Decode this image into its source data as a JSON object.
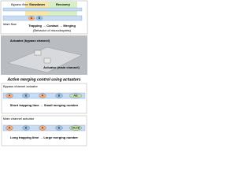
{
  "top": {
    "bypass_flow": "Bypass flow",
    "slowdown": "Slowdown",
    "recovery": "Recovery",
    "droplet_a": "A",
    "droplet_b": "B",
    "main_flow": "Main flow",
    "process": "Trapping → Contact → Merging",
    "behavior": "(Behavior of microdroplets)"
  },
  "photo": {
    "actuator_bypass": "Actuator (bypass channel)",
    "actuator_main": "Actuator (main channel)"
  },
  "control": {
    "title": "Active merging control using actuators",
    "panels": [
      {
        "label": "Bypass channel actuator",
        "droplets": [
          "A",
          "B",
          "A",
          "B",
          "AB"
        ],
        "result": "Short trapping time → Small merging number"
      },
      {
        "label": "Main channel actuator",
        "droplets": [
          "A",
          "B",
          "A",
          "B",
          "2A/2B"
        ],
        "result": "Long trapping time → Large merging number"
      }
    ]
  }
}
